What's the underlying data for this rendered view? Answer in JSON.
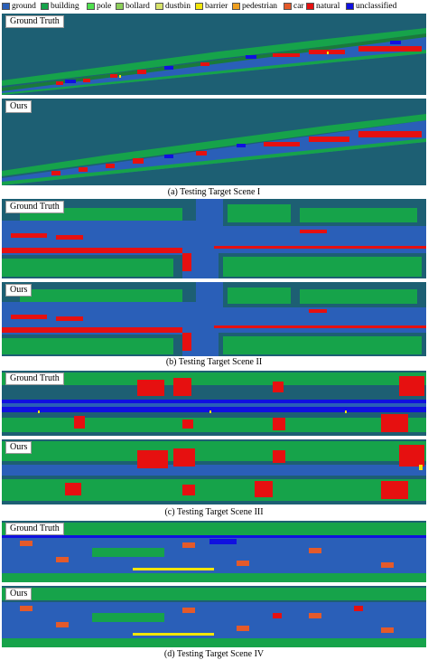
{
  "legend": [
    {
      "label": "ground",
      "color": "#2a5fb8"
    },
    {
      "label": "building",
      "color": "#16a34a"
    },
    {
      "label": "pole",
      "color": "#4ee04e"
    },
    {
      "label": "bollard",
      "color": "#8ccf5a"
    },
    {
      "label": "dustbin",
      "color": "#d7e36a"
    },
    {
      "label": "barrier",
      "color": "#f2e60a"
    },
    {
      "label": "pedestrian",
      "color": "#f0a020"
    },
    {
      "label": "car",
      "color": "#e45a2a"
    },
    {
      "label": "natural",
      "color": "#e61010"
    },
    {
      "label": "unclassified",
      "color": "#1010e0"
    }
  ],
  "scenes": [
    {
      "caption": "(a) Testing Target Scene I",
      "panels": [
        {
          "label": "Ground Truth"
        },
        {
          "label": "Ours"
        }
      ]
    },
    {
      "caption": "(b) Testing Target Scene II",
      "panels": [
        {
          "label": "Ground Truth"
        },
        {
          "label": "Ours"
        }
      ]
    },
    {
      "caption": "(c) Testing Target Scene III",
      "panels": [
        {
          "label": "Ground Truth"
        },
        {
          "label": "Ours"
        }
      ]
    },
    {
      "caption": "(d) Testing Target Scene IV",
      "panels": [
        {
          "label": "Ground Truth"
        },
        {
          "label": "Ours"
        }
      ]
    }
  ]
}
